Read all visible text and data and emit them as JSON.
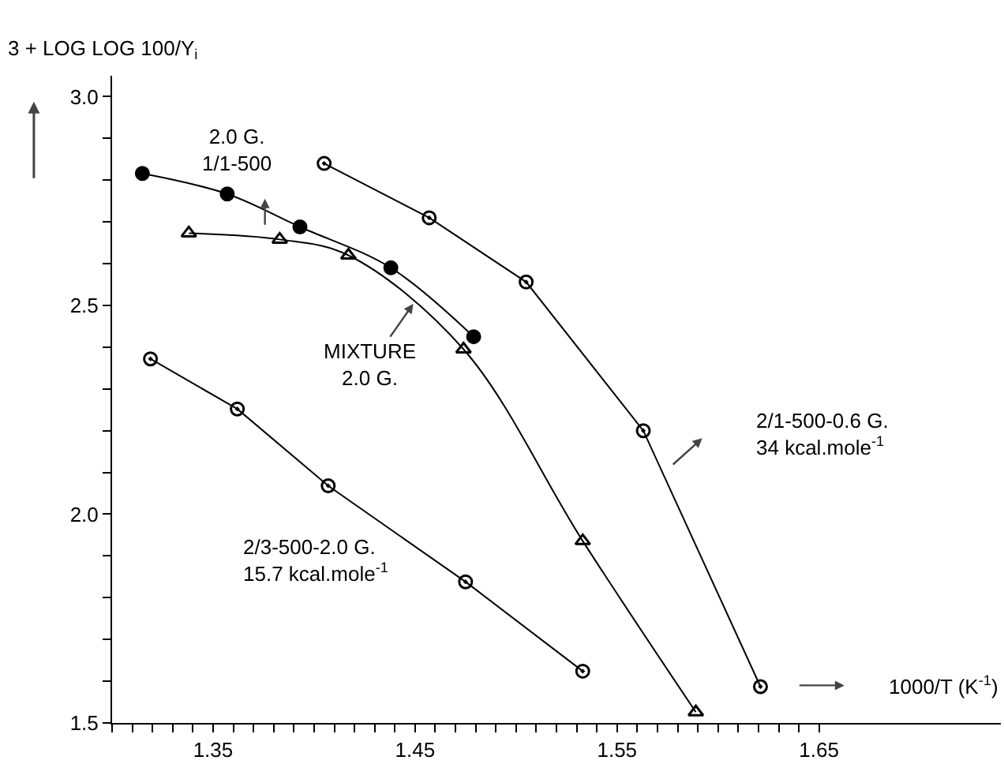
{
  "chart_data": {
    "type": "line",
    "xlabel": "1000/T (K$^{-1}$)",
    "ylabel": "3 + LOG LOG 100/Y$_{i}$",
    "xlim": [
      1.3,
      1.74
    ],
    "ylim": [
      1.5,
      3.05
    ],
    "xticks": [
      {
        "value": 1.3,
        "label": null
      },
      {
        "value": 1.31,
        "label": null
      },
      {
        "value": 1.32,
        "label": null
      },
      {
        "value": 1.33,
        "label": null
      },
      {
        "value": 1.34,
        "label": null
      },
      1.35,
      {
        "value": 1.36,
        "label": null
      },
      {
        "value": 1.37,
        "label": null
      },
      {
        "value": 1.38,
        "label": null
      },
      {
        "value": 1.39,
        "label": null
      },
      {
        "value": 1.4,
        "label": null
      },
      {
        "value": 1.41,
        "label": null
      },
      {
        "value": 1.42,
        "label": null
      },
      {
        "value": 1.43,
        "label": null
      },
      {
        "value": 1.44,
        "label": null
      },
      1.45,
      {
        "value": 1.46,
        "label": null
      },
      {
        "value": 1.47,
        "label": null
      },
      {
        "value": 1.48,
        "label": null
      },
      {
        "value": 1.49,
        "label": null
      },
      {
        "value": 1.5,
        "label": null
      },
      {
        "value": 1.51,
        "label": null
      },
      {
        "value": 1.52,
        "label": null
      },
      {
        "value": 1.53,
        "label": null
      },
      {
        "value": 1.54,
        "label": null
      },
      1.55,
      {
        "value": 1.56,
        "label": null
      },
      {
        "value": 1.57,
        "label": null
      },
      {
        "value": 1.58,
        "label": null
      },
      {
        "value": 1.59,
        "label": null
      },
      {
        "value": 1.6,
        "label": null
      },
      {
        "value": 1.61,
        "label": null
      },
      {
        "value": 1.62,
        "label": null
      },
      {
        "value": 1.63,
        "label": null
      },
      {
        "value": 1.64,
        "label": null
      },
      1.65
    ],
    "yticks": [
      {
        "value": 1.5,
        "label": "1.5"
      },
      {
        "value": 1.6,
        "label": null
      },
      {
        "value": 1.7,
        "label": null
      },
      {
        "value": 1.8,
        "label": null
      },
      {
        "value": 1.9,
        "label": null
      },
      {
        "value": 2,
        "label": "2.0"
      },
      {
        "value": 2.1,
        "label": null
      },
      {
        "value": 2.2,
        "label": null
      },
      {
        "value": 2.3,
        "label": null
      },
      {
        "value": 2.4,
        "label": null
      },
      {
        "value": 2.5,
        "label": "2.5"
      },
      {
        "value": 2.6,
        "label": null
      },
      {
        "value": 2.7,
        "label": null
      },
      {
        "value": 2.8,
        "label": null
      },
      {
        "value": 2.9,
        "label": null
      },
      {
        "value": 3,
        "label": "3.0"
      }
    ],
    "grid": false,
    "legend": false,
    "line_style": "solid",
    "series": [
      {
        "color": "#000000",
        "marker": "circle",
        "x": [
          1.405,
          1.457,
          1.505,
          1.563,
          1.621
        ],
        "values": [
          2.84,
          2.71,
          2.556,
          2.2,
          1.587
        ]
      },
      {
        "color": "#000000",
        "marker": "circle",
        "x": [
          1.315,
          1.357,
          1.393,
          1.438,
          1.479
        ],
        "values": [
          2.816,
          2.767,
          2.688,
          2.59,
          2.425
        ]
      },
      {
        "color": "#000000",
        "marker": "triangle",
        "x": [
          1.338,
          1.383,
          1.417,
          1.474,
          1.533,
          1.589
        ],
        "values": [
          2.673,
          2.658,
          2.62,
          2.395,
          1.936,
          1.526
        ]
      },
      {
        "color": "#000000",
        "marker": "circle",
        "x": [
          1.319,
          1.362,
          1.407,
          1.475,
          1.533
        ],
        "values": [
          2.372,
          2.252,
          2.068,
          1.838,
          1.624
        ]
      }
    ],
    "annotations": [
      "2.0 G.\n1/1-500",
      {
        "text": "MIXTURE\n2.0 G.",
        "x": 1.45,
        "y": 2.51
      },
      "2/1-500-0.6 G.\n34 kcal.mole$^{-1}$",
      "2/3-500-2.0 G.\n15.7 kcal.mole$^{-1}$"
    ]
  }
}
